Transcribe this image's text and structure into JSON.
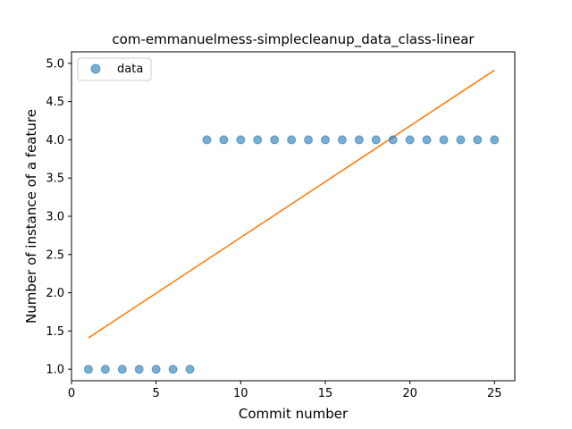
{
  "chart_data": {
    "type": "scatter",
    "title": "com-emmanuelmess-simplecleanup_data_class-linear",
    "xlabel": "Commit number",
    "ylabel": "Number of instance of a feature",
    "xlim": [
      0,
      26.2
    ],
    "ylim": [
      0.85,
      5.15
    ],
    "x_ticks": [
      0,
      5,
      10,
      15,
      20,
      25
    ],
    "y_ticks": [
      1.0,
      1.5,
      2.0,
      2.5,
      3.0,
      3.5,
      4.0,
      4.5,
      5.0
    ],
    "x_tick_labels": [
      "0",
      "5",
      "10",
      "15",
      "20",
      "25"
    ],
    "y_tick_labels": [
      "1.0",
      "1.5",
      "2.0",
      "2.5",
      "3.0",
      "3.5",
      "4.0",
      "4.5",
      "5.0"
    ],
    "grid": false,
    "legend_position": "top-left",
    "series": [
      {
        "name": "data",
        "kind": "scatter",
        "color": "#1f77b4",
        "x": [
          1,
          2,
          3,
          4,
          5,
          6,
          7,
          8,
          9,
          10,
          11,
          12,
          13,
          14,
          15,
          16,
          17,
          18,
          19,
          20,
          21,
          22,
          23,
          24,
          25
        ],
        "y": [
          1,
          1,
          1,
          1,
          1,
          1,
          1,
          4,
          4,
          4,
          4,
          4,
          4,
          4,
          4,
          4,
          4,
          4,
          4,
          4,
          4,
          4,
          4,
          4,
          4
        ]
      },
      {
        "kind": "line",
        "color": "#ff7f0e",
        "x": [
          1,
          25
        ],
        "y": [
          1.41,
          4.91
        ]
      }
    ]
  }
}
